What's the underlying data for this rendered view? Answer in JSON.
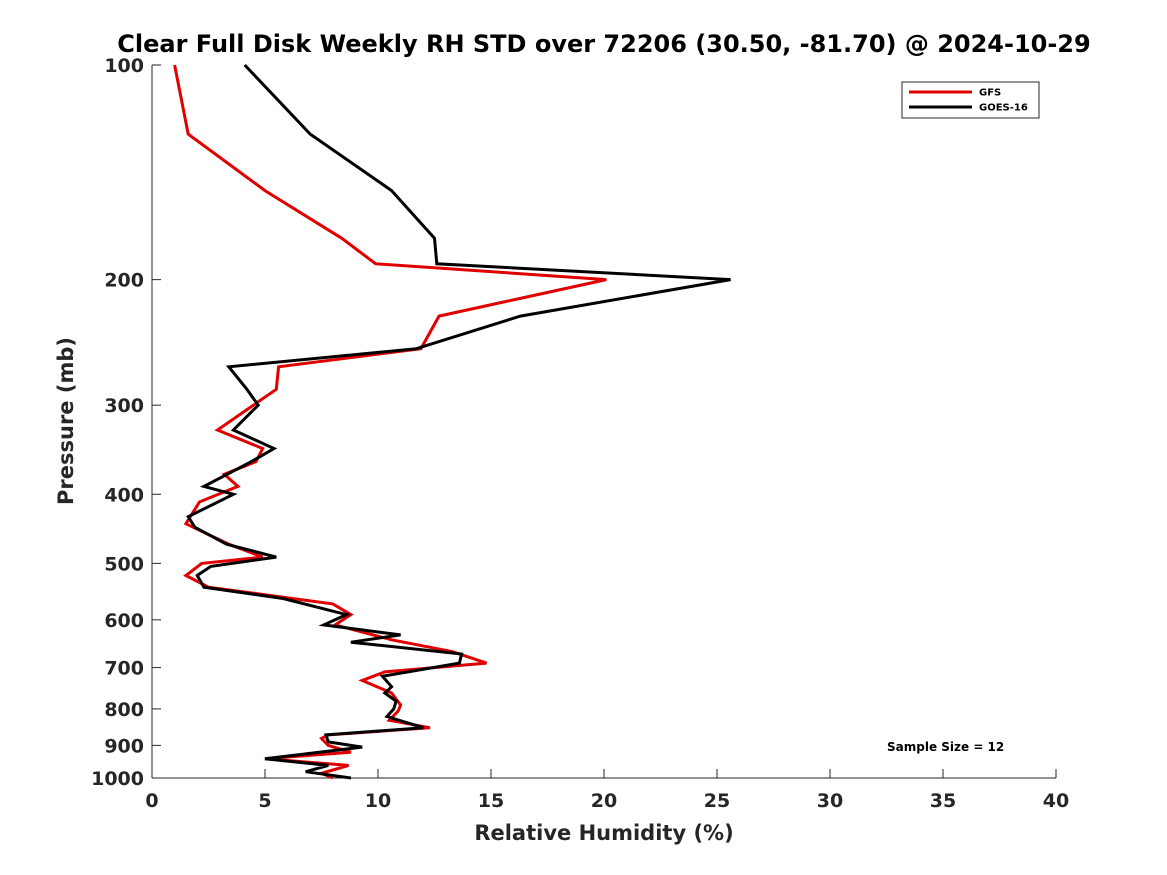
{
  "chart_data": {
    "type": "line",
    "title": "Clear Full Disk Weekly RH STD over 72206 (30.50, -81.70) @ 2024-10-29",
    "xlabel": "Relative Humidity (%)",
    "ylabel": "Pressure (mb)",
    "xlim": [
      0,
      40
    ],
    "ylim": [
      100,
      1000
    ],
    "yscale": "log",
    "y_reversed": true,
    "xticks": [
      0,
      5,
      10,
      15,
      20,
      25,
      30,
      35,
      40
    ],
    "yticks": [
      100,
      200,
      300,
      400,
      500,
      600,
      700,
      800,
      900,
      1000
    ],
    "grid": false,
    "legend_position": "top-right",
    "annotation": "Sample Size = 12",
    "series": [
      {
        "name": "GFS",
        "color": "#e00000",
        "points": [
          [
            1.0,
            100
          ],
          [
            1.6,
            125
          ],
          [
            5.0,
            150
          ],
          [
            8.4,
            175
          ],
          [
            9.9,
            190
          ],
          [
            20.1,
            200
          ],
          [
            12.7,
            225
          ],
          [
            11.9,
            250
          ],
          [
            5.6,
            265
          ],
          [
            5.5,
            285
          ],
          [
            2.9,
            325
          ],
          [
            4.9,
            345
          ],
          [
            4.6,
            360
          ],
          [
            3.2,
            375
          ],
          [
            3.8,
            390
          ],
          [
            2.1,
            410
          ],
          [
            1.5,
            440
          ],
          [
            3.4,
            470
          ],
          [
            4.9,
            490
          ],
          [
            2.2,
            500
          ],
          [
            1.5,
            520
          ],
          [
            2.5,
            540
          ],
          [
            8.0,
            570
          ],
          [
            8.8,
            590
          ],
          [
            8.1,
            610
          ],
          [
            10.6,
            640
          ],
          [
            13.3,
            665
          ],
          [
            14.8,
            690
          ],
          [
            10.3,
            710
          ],
          [
            9.3,
            730
          ],
          [
            10.6,
            760
          ],
          [
            11.0,
            790
          ],
          [
            10.9,
            805
          ],
          [
            10.5,
            830
          ],
          [
            12.3,
            850
          ],
          [
            7.8,
            870
          ],
          [
            7.5,
            880
          ],
          [
            7.8,
            900
          ],
          [
            8.8,
            920
          ],
          [
            5.0,
            940
          ],
          [
            8.7,
            960
          ],
          [
            7.5,
            985
          ],
          [
            8.0,
            1000
          ]
        ]
      },
      {
        "name": "GOES-16",
        "color": "#000000",
        "points": [
          [
            4.1,
            100
          ],
          [
            7.0,
            125
          ],
          [
            10.6,
            150
          ],
          [
            12.5,
            175
          ],
          [
            12.6,
            190
          ],
          [
            25.6,
            200
          ],
          [
            16.3,
            225
          ],
          [
            11.7,
            250
          ],
          [
            3.4,
            265
          ],
          [
            4.2,
            285
          ],
          [
            4.7,
            300
          ],
          [
            3.6,
            325
          ],
          [
            5.4,
            345
          ],
          [
            4.4,
            360
          ],
          [
            2.3,
            390
          ],
          [
            3.6,
            400
          ],
          [
            1.6,
            430
          ],
          [
            1.9,
            445
          ],
          [
            3.3,
            470
          ],
          [
            5.5,
            490
          ],
          [
            2.6,
            505
          ],
          [
            2.0,
            520
          ],
          [
            2.3,
            540
          ],
          [
            5.8,
            560
          ],
          [
            8.6,
            590
          ],
          [
            7.6,
            610
          ],
          [
            11.0,
            630
          ],
          [
            8.8,
            645
          ],
          [
            13.7,
            670
          ],
          [
            13.6,
            690
          ],
          [
            10.2,
            720
          ],
          [
            10.6,
            745
          ],
          [
            10.3,
            760
          ],
          [
            10.8,
            780
          ],
          [
            10.7,
            800
          ],
          [
            10.4,
            820
          ],
          [
            12.0,
            850
          ],
          [
            7.7,
            870
          ],
          [
            7.8,
            890
          ],
          [
            9.3,
            905
          ],
          [
            5.0,
            940
          ],
          [
            7.8,
            960
          ],
          [
            6.8,
            980
          ],
          [
            8.8,
            1000
          ]
        ]
      }
    ]
  }
}
